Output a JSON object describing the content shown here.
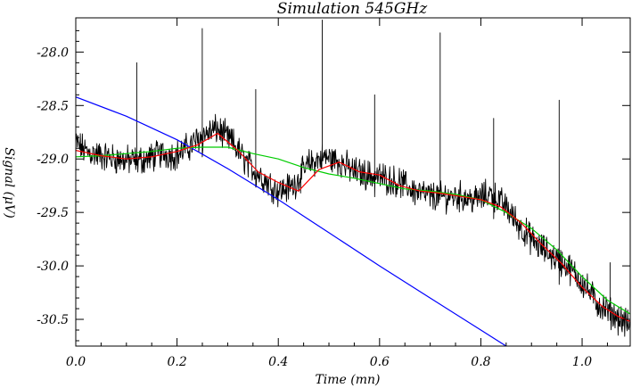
{
  "chart_data": {
    "type": "line",
    "title": "Simulation 545GHz",
    "xlabel": "Time (mn)",
    "ylabel": "Signal (μV)",
    "xlim": [
      0.0,
      1.095
    ],
    "ylim": [
      -30.75,
      -27.68
    ],
    "xticks": [
      {
        "value": 0.0,
        "label": "0.0"
      },
      {
        "value": 0.2,
        "label": "0.2"
      },
      {
        "value": 0.4,
        "label": "0.4"
      },
      {
        "value": 0.6,
        "label": "0.6"
      },
      {
        "value": 0.8,
        "label": "0.8"
      },
      {
        "value": 1.0,
        "label": "1.0"
      }
    ],
    "yticks": [
      {
        "value": -28.0,
        "label": "-28.0"
      },
      {
        "value": -28.5,
        "label": "-28.5"
      },
      {
        "value": -29.0,
        "label": "-29.0"
      },
      {
        "value": -29.5,
        "label": "-29.5"
      },
      {
        "value": -30.0,
        "label": "-30.0"
      },
      {
        "value": -30.5,
        "label": "-30.5"
      }
    ],
    "grid": false,
    "legend": "none",
    "series": [
      {
        "color": "#000000",
        "style": "noisy raw signal",
        "x": [
          0.0,
          0.02,
          0.05,
          0.08,
          0.11,
          0.14,
          0.17,
          0.2,
          0.22,
          0.25,
          0.28,
          0.31,
          0.34,
          0.37,
          0.4,
          0.43,
          0.46,
          0.49,
          0.52,
          0.55,
          0.58,
          0.61,
          0.64,
          0.67,
          0.7,
          0.73,
          0.76,
          0.79,
          0.82,
          0.85,
          0.88,
          0.91,
          0.94,
          0.97,
          1.0,
          1.03,
          1.06,
          1.09
        ],
        "values": [
          -28.85,
          -28.93,
          -28.97,
          -29.0,
          -29.02,
          -29.0,
          -28.95,
          -28.96,
          -28.9,
          -28.78,
          -28.72,
          -28.85,
          -29.05,
          -29.18,
          -29.3,
          -29.25,
          -29.05,
          -28.98,
          -29.02,
          -29.12,
          -29.15,
          -29.18,
          -29.22,
          -29.3,
          -29.35,
          -29.35,
          -29.35,
          -29.38,
          -29.32,
          -29.45,
          -29.65,
          -29.8,
          -29.9,
          -30.0,
          -30.15,
          -30.35,
          -30.45,
          -30.55
        ],
        "spikes": [
          {
            "x": 0.12,
            "y": -28.1
          },
          {
            "x": 0.25,
            "y": -27.78
          },
          {
            "x": 0.355,
            "y": -28.35
          },
          {
            "x": 0.487,
            "y": -27.7
          },
          {
            "x": 0.59,
            "y": -28.4
          },
          {
            "x": 0.72,
            "y": -27.82
          },
          {
            "x": 0.825,
            "y": -28.62
          },
          {
            "x": 0.955,
            "y": -28.45
          },
          {
            "x": 1.055,
            "y": -29.97
          }
        ]
      },
      {
        "color": "#ff0000",
        "style": "smoothed",
        "x": [
          0.0,
          0.05,
          0.1,
          0.15,
          0.2,
          0.24,
          0.28,
          0.32,
          0.36,
          0.4,
          0.44,
          0.48,
          0.52,
          0.56,
          0.6,
          0.64,
          0.68,
          0.72,
          0.76,
          0.8,
          0.84,
          0.88,
          0.92,
          0.96,
          1.0,
          1.04,
          1.07,
          1.095
        ],
        "values": [
          -28.92,
          -28.97,
          -29.0,
          -28.98,
          -28.93,
          -28.87,
          -28.76,
          -28.92,
          -29.12,
          -29.22,
          -29.3,
          -29.1,
          -29.03,
          -29.12,
          -29.15,
          -29.25,
          -29.3,
          -29.32,
          -29.35,
          -29.38,
          -29.45,
          -29.6,
          -29.8,
          -29.98,
          -30.2,
          -30.38,
          -30.47,
          -30.52
        ]
      },
      {
        "color": "#00cc00",
        "style": "smoothed",
        "x": [
          0.0,
          0.05,
          0.1,
          0.15,
          0.2,
          0.25,
          0.3,
          0.35,
          0.4,
          0.45,
          0.5,
          0.55,
          0.6,
          0.65,
          0.7,
          0.75,
          0.8,
          0.85,
          0.9,
          0.95,
          1.0,
          1.05,
          1.095
        ],
        "values": [
          -28.98,
          -28.97,
          -28.95,
          -28.93,
          -28.9,
          -28.89,
          -28.89,
          -28.95,
          -29.0,
          -29.08,
          -29.14,
          -29.18,
          -29.23,
          -29.28,
          -29.3,
          -29.33,
          -29.38,
          -29.5,
          -29.65,
          -29.85,
          -30.1,
          -30.32,
          -30.45
        ]
      },
      {
        "color": "#0000ff",
        "style": "linear baseline",
        "x": [
          0.0,
          0.1,
          0.2,
          0.3,
          0.4,
          0.5,
          0.6,
          0.7,
          0.8,
          0.85
        ],
        "values": [
          -28.42,
          -28.6,
          -28.82,
          -29.09,
          -29.38,
          -29.69,
          -30.0,
          -30.3,
          -30.6,
          -30.75
        ]
      }
    ]
  }
}
